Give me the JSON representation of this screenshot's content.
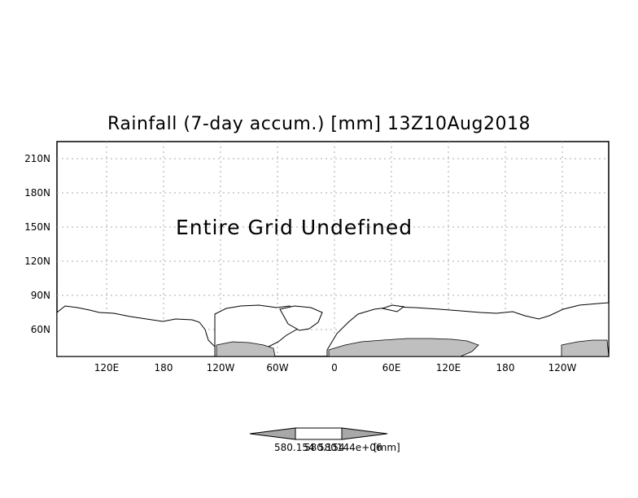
{
  "title": "Rainfall (7-day accum.) [mm] 13Z10Aug2018",
  "message": "Entire Grid Undefined",
  "y_ticks": [
    "210N",
    "180N",
    "150N",
    "120N",
    "90N",
    "60N"
  ],
  "x_ticks": [
    "120E",
    "180",
    "120W",
    "60W",
    "0",
    "60E",
    "120E",
    "180",
    "120W"
  ],
  "colorbar": {
    "labels": [
      "580.154",
      "580.154",
      "580144e+06",
      "[mm]"
    ],
    "colors": {
      "arrow": "#a8a8a8",
      "center": "#ffffff"
    }
  },
  "colors": {
    "land_fill": "#bfbfbf",
    "grid": "#aaaaaa",
    "frame": "#000000"
  }
}
